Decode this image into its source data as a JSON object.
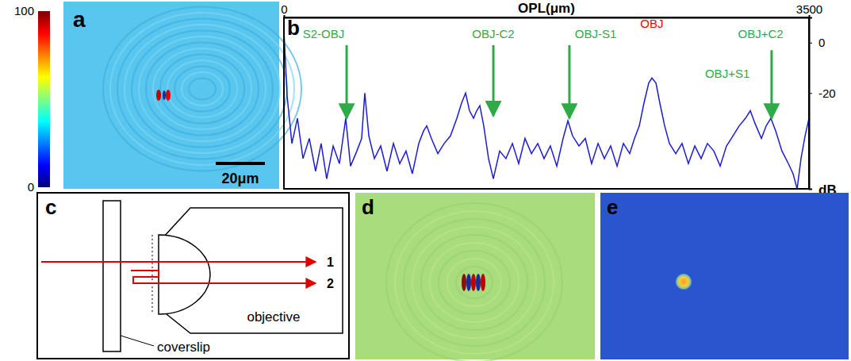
{
  "chart_data": [
    {
      "type": "line",
      "panel": "b",
      "x_label": "OPL(μm)",
      "y_label": "dB",
      "xlim": [
        0,
        3500
      ],
      "xticks": [
        0,
        3500
      ],
      "ylim": [
        -58,
        10
      ],
      "yticks": [
        0,
        -20
      ],
      "color": "#1c1cd8",
      "x": [
        0,
        21,
        53,
        90,
        127,
        169,
        211,
        248,
        285,
        328,
        370,
        412,
        444,
        486,
        518,
        539,
        566,
        603,
        645,
        687,
        730,
        772,
        814,
        856,
        899,
        931,
        952,
        983,
        1026,
        1068,
        1110,
        1153,
        1184,
        1211,
        1237,
        1264,
        1285,
        1306,
        1332,
        1364,
        1396,
        1438,
        1480,
        1523,
        1565,
        1607,
        1650,
        1692,
        1734,
        1776,
        1819,
        1861,
        1893,
        1924,
        1967,
        2009,
        2051,
        2094,
        2136,
        2178,
        2221,
        2263,
        2305,
        2337,
        2369,
        2400,
        2432,
        2453,
        2480,
        2506,
        2538,
        2570,
        2612,
        2654,
        2696,
        2739,
        2781,
        2823,
        2866,
        2908,
        2950,
        2993,
        3035,
        3077,
        3109,
        3140,
        3183,
        3215,
        3246,
        3278,
        3320,
        3363,
        3394,
        3421,
        3447,
        3474,
        3500
      ],
      "values": [
        5,
        -21,
        -40,
        -30,
        -46,
        -38,
        -51,
        -40,
        -54,
        -41,
        -48,
        -30,
        -49,
        -43,
        -38,
        -20,
        -37,
        -46,
        -41,
        -51,
        -40,
        -48,
        -43,
        -52,
        -40,
        -35,
        -33,
        -38,
        -44,
        -40,
        -37,
        -30,
        -24,
        -20,
        -27,
        -30,
        -27,
        -25,
        -33,
        -46,
        -54,
        -43,
        -46,
        -40,
        -48,
        -38,
        -44,
        -40,
        -46,
        -41,
        -49,
        -38,
        -31,
        -37,
        -41,
        -38,
        -48,
        -40,
        -46,
        -41,
        -49,
        -40,
        -44,
        -38,
        -33,
        -24,
        -16,
        -14,
        -16,
        -24,
        -33,
        -40,
        -44,
        -40,
        -48,
        -41,
        -46,
        -40,
        -43,
        -49,
        -41,
        -37,
        -33,
        -30,
        -27,
        -32,
        -38,
        -33,
        -30,
        -35,
        -43,
        -48,
        -52,
        -58,
        -46,
        -37,
        -30
      ],
      "annotations": [
        {
          "text": "S2-OBJ",
          "color": "#2eaa48",
          "x": 264,
          "y": 3,
          "arrow_x": 418,
          "arrow_from": -1,
          "arrow_to": -30
        },
        {
          "text": "OBJ-C2",
          "color": "#2eaa48",
          "x": 1396,
          "y": 3,
          "arrow_x": 1396,
          "arrow_from": -1,
          "arrow_to": -29
        },
        {
          "text": "OBJ-S1",
          "color": "#2eaa48",
          "x": 2078,
          "y": 3,
          "arrow_x": 1903,
          "arrow_from": -1,
          "arrow_to": -30
        },
        {
          "text": "OBJ",
          "color": "#ff0000",
          "x": 2453,
          "y": 7
        },
        {
          "text": "OBJ+C2",
          "color": "#2eaa48",
          "x": 3178,
          "y": 3,
          "arrow_x": 3251,
          "arrow_from": -3,
          "arrow_to": -30
        },
        {
          "text": "OBJ+S1",
          "color": "#2eaa48",
          "x": 2956,
          "y": -12.7
        }
      ]
    },
    {
      "type": "image",
      "panel": "a",
      "scale_bar": "20μm",
      "colorbar": {
        "range": [
          0,
          100
        ],
        "ticks": [
          0,
          100
        ]
      }
    },
    {
      "type": "image",
      "panel": "d"
    },
    {
      "type": "image",
      "panel": "e"
    }
  ],
  "diagram": {
    "panel": "c",
    "labels": {
      "ray1": "1",
      "ray2": "2",
      "objective": "objective",
      "coverslip": "coverslip"
    }
  }
}
